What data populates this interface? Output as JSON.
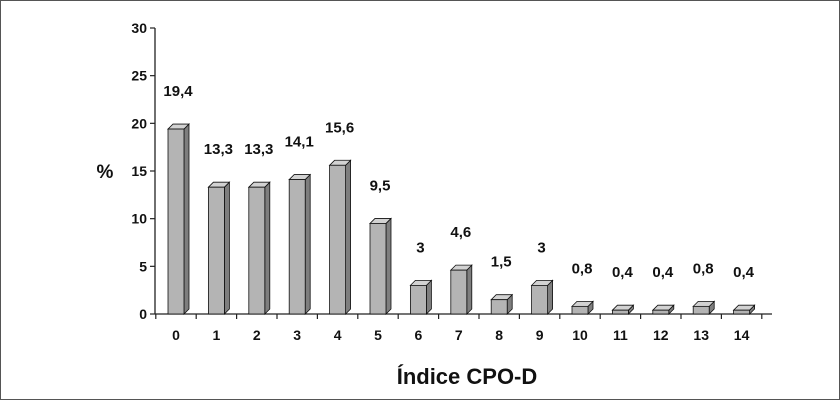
{
  "chart_data": {
    "type": "bar",
    "categories": [
      "0",
      "1",
      "2",
      "3",
      "4",
      "5",
      "6",
      "7",
      "8",
      "9",
      "10",
      "11",
      "12",
      "13",
      "14"
    ],
    "values": [
      19.4,
      13.3,
      13.3,
      14.1,
      15.6,
      9.5,
      3,
      4.6,
      1.5,
      3,
      0.8,
      0.4,
      0.4,
      0.8,
      0.4
    ],
    "value_labels": [
      "19,4",
      "13,3",
      "13,3",
      "14,1",
      "15,6",
      "9,5",
      "3",
      "4,6",
      "1,5",
      "3",
      "0,8",
      "0,4",
      "0,4",
      "0,8",
      "0,4"
    ],
    "title": "",
    "xlabel": "Índice CPO-D",
    "ylabel": "%",
    "ylim": [
      0,
      30
    ],
    "yticks": [
      0,
      5,
      10,
      15,
      20,
      25,
      30
    ],
    "grid": false,
    "bar_color": "#b4b4b4"
  }
}
